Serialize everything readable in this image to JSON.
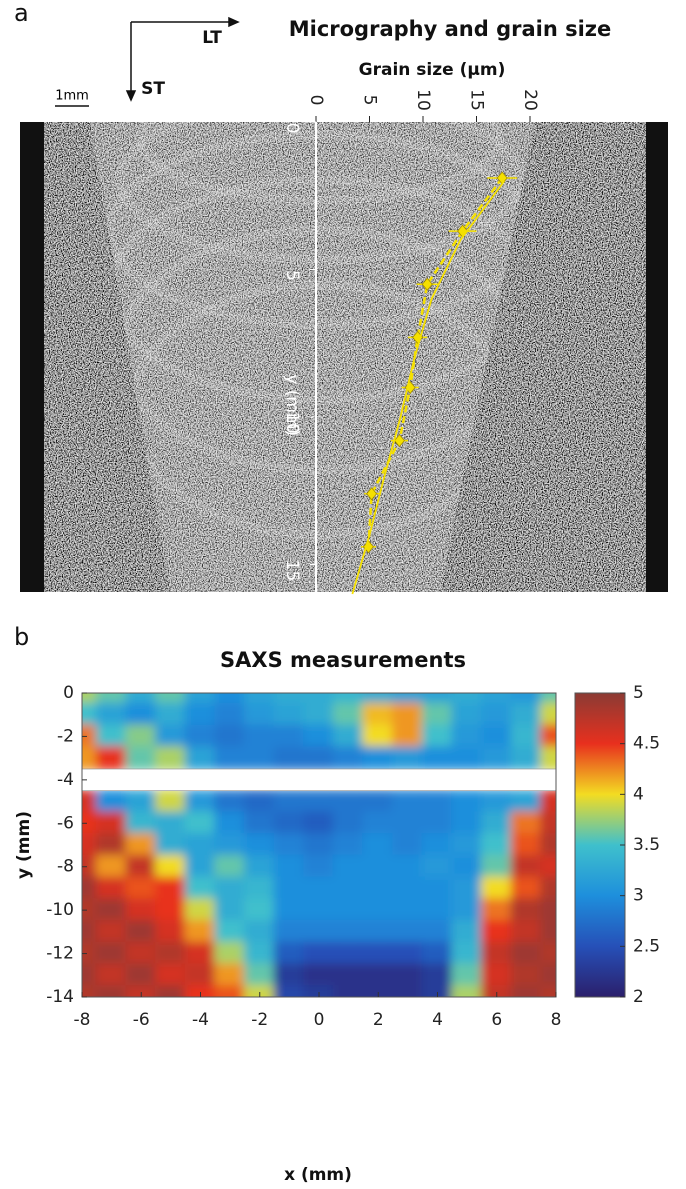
{
  "chart_data": [
    {
      "type": "line",
      "panel": "a",
      "title": "Micrography and grain size",
      "xlabel": "Grain size (μm)",
      "ylabel": "y (mm)",
      "annotations": [
        "LT",
        "ST",
        "1mm"
      ],
      "xlim": [
        0,
        20
      ],
      "xticks": [
        0,
        5,
        10,
        15,
        20
      ],
      "ylim": [
        0,
        16
      ],
      "yticks": [
        0,
        5,
        10,
        15
      ],
      "series": [
        {
          "color": "#f5e000",
          "depths": [
            1.9,
            3.7,
            5.5,
            7.3,
            9.0,
            10.8,
            12.6,
            14.4
          ],
          "values": [
            17.4,
            13.7,
            10.4,
            9.5,
            8.8,
            7.8,
            5.2,
            4.9
          ],
          "errors": [
            1.4,
            1.3,
            1.0,
            0.9,
            0.8,
            0.8,
            0.7,
            0.7
          ],
          "markers": true
        },
        {
          "color": "#f5e000",
          "depths": [
            2,
            4,
            6,
            8,
            10,
            12,
            14,
            16
          ],
          "values": [
            17.6,
            13.5,
            10.8,
            9.2,
            7.9,
            6.4,
            5.0,
            3.4
          ],
          "markers": false
        }
      ]
    },
    {
      "type": "heatmap",
      "panel": "b",
      "title": "SAXS measurements",
      "xlabel": "x (mm)",
      "ylabel": "y (mm)",
      "xlim": [
        -8,
        8
      ],
      "xticks": [
        -8,
        -6,
        -4,
        -2,
        0,
        2,
        4,
        6,
        8
      ],
      "ylim": [
        -14,
        0
      ],
      "yticks": [
        0,
        -2,
        -4,
        -6,
        -8,
        -10,
        -12,
        -14
      ],
      "clim": [
        2,
        5
      ],
      "cticks": [
        2,
        2.5,
        3,
        3.5,
        4,
        4.5,
        5
      ],
      "colormap": [
        "#2b1f6b",
        "#2650b8",
        "#1e8fdc",
        "#3fc0cc",
        "#f3dc22",
        "#e8301e",
        "#8b3b34"
      ],
      "x": [
        -8,
        -7,
        -6,
        -5,
        -4,
        -3,
        -2,
        -1,
        0,
        1,
        2,
        3,
        4,
        5,
        6,
        7,
        8
      ],
      "y": [
        0,
        -1,
        -2,
        -3,
        -5,
        -6,
        -7,
        -8,
        -9,
        -10,
        -11,
        -12,
        -13,
        -14
      ],
      "z": [
        [
          3.8,
          3.6,
          3.3,
          3.6,
          3.2,
          3.0,
          3.2,
          3.3,
          3.3,
          3.4,
          3.3,
          3.2,
          3.2,
          3.3,
          3.2,
          3.1,
          3.6
        ],
        [
          3.5,
          3.2,
          3.0,
          3.3,
          3.0,
          2.9,
          3.1,
          3.2,
          3.3,
          3.6,
          4.1,
          4.2,
          3.6,
          3.2,
          3.1,
          3.3,
          3.9
        ],
        [
          4.3,
          3.5,
          3.7,
          3.1,
          2.9,
          2.8,
          2.9,
          2.9,
          3.0,
          3.3,
          4.0,
          4.2,
          3.5,
          3.1,
          3.0,
          3.4,
          4.4
        ],
        [
          4.2,
          4.5,
          3.6,
          3.8,
          3.2,
          2.9,
          2.9,
          2.8,
          2.8,
          2.9,
          3.0,
          3.1,
          3.0,
          3.0,
          3.1,
          3.3,
          3.9
        ],
        [
          4.6,
          3.0,
          3.2,
          3.9,
          3.1,
          2.8,
          2.7,
          2.8,
          2.8,
          2.8,
          2.8,
          2.9,
          2.9,
          3.0,
          3.1,
          3.2,
          4.6
        ],
        [
          4.5,
          4.6,
          3.4,
          3.3,
          3.5,
          3.0,
          2.8,
          2.7,
          2.6,
          2.8,
          2.9,
          2.9,
          2.9,
          3.0,
          3.3,
          4.3,
          4.7
        ],
        [
          4.6,
          4.8,
          4.2,
          3.3,
          3.2,
          3.1,
          3.0,
          2.9,
          2.8,
          2.9,
          3.0,
          2.9,
          3.0,
          3.1,
          3.5,
          4.4,
          4.8
        ],
        [
          4.7,
          4.2,
          4.7,
          4.0,
          3.2,
          3.6,
          3.2,
          3.0,
          2.9,
          3.0,
          3.0,
          3.0,
          3.1,
          3.0,
          3.6,
          4.7,
          4.6
        ],
        [
          4.9,
          4.6,
          4.4,
          4.5,
          3.5,
          3.3,
          3.4,
          3.0,
          3.0,
          3.0,
          3.0,
          3.0,
          3.0,
          3.1,
          4.0,
          4.4,
          4.8
        ],
        [
          4.8,
          4.9,
          4.6,
          4.5,
          3.9,
          3.3,
          3.5,
          3.0,
          3.0,
          3.0,
          3.0,
          3.0,
          3.0,
          3.1,
          4.3,
          4.8,
          4.9
        ],
        [
          4.9,
          4.7,
          4.9,
          4.6,
          4.2,
          3.5,
          3.3,
          2.9,
          2.9,
          2.9,
          2.9,
          2.9,
          2.9,
          3.3,
          4.5,
          4.7,
          4.9
        ],
        [
          4.8,
          4.9,
          4.7,
          4.8,
          4.6,
          3.8,
          3.4,
          2.6,
          2.5,
          2.5,
          2.5,
          2.5,
          2.6,
          3.4,
          4.7,
          4.9,
          4.8
        ],
        [
          4.9,
          4.7,
          4.9,
          4.6,
          4.7,
          4.2,
          3.6,
          2.3,
          2.2,
          2.2,
          2.2,
          2.2,
          2.3,
          3.6,
          4.6,
          4.8,
          4.9
        ],
        [
          4.8,
          4.9,
          4.7,
          4.9,
          4.5,
          4.4,
          3.9,
          2.4,
          2.3,
          2.2,
          2.2,
          2.2,
          2.3,
          3.8,
          4.7,
          4.9,
          4.8
        ]
      ]
    }
  ]
}
